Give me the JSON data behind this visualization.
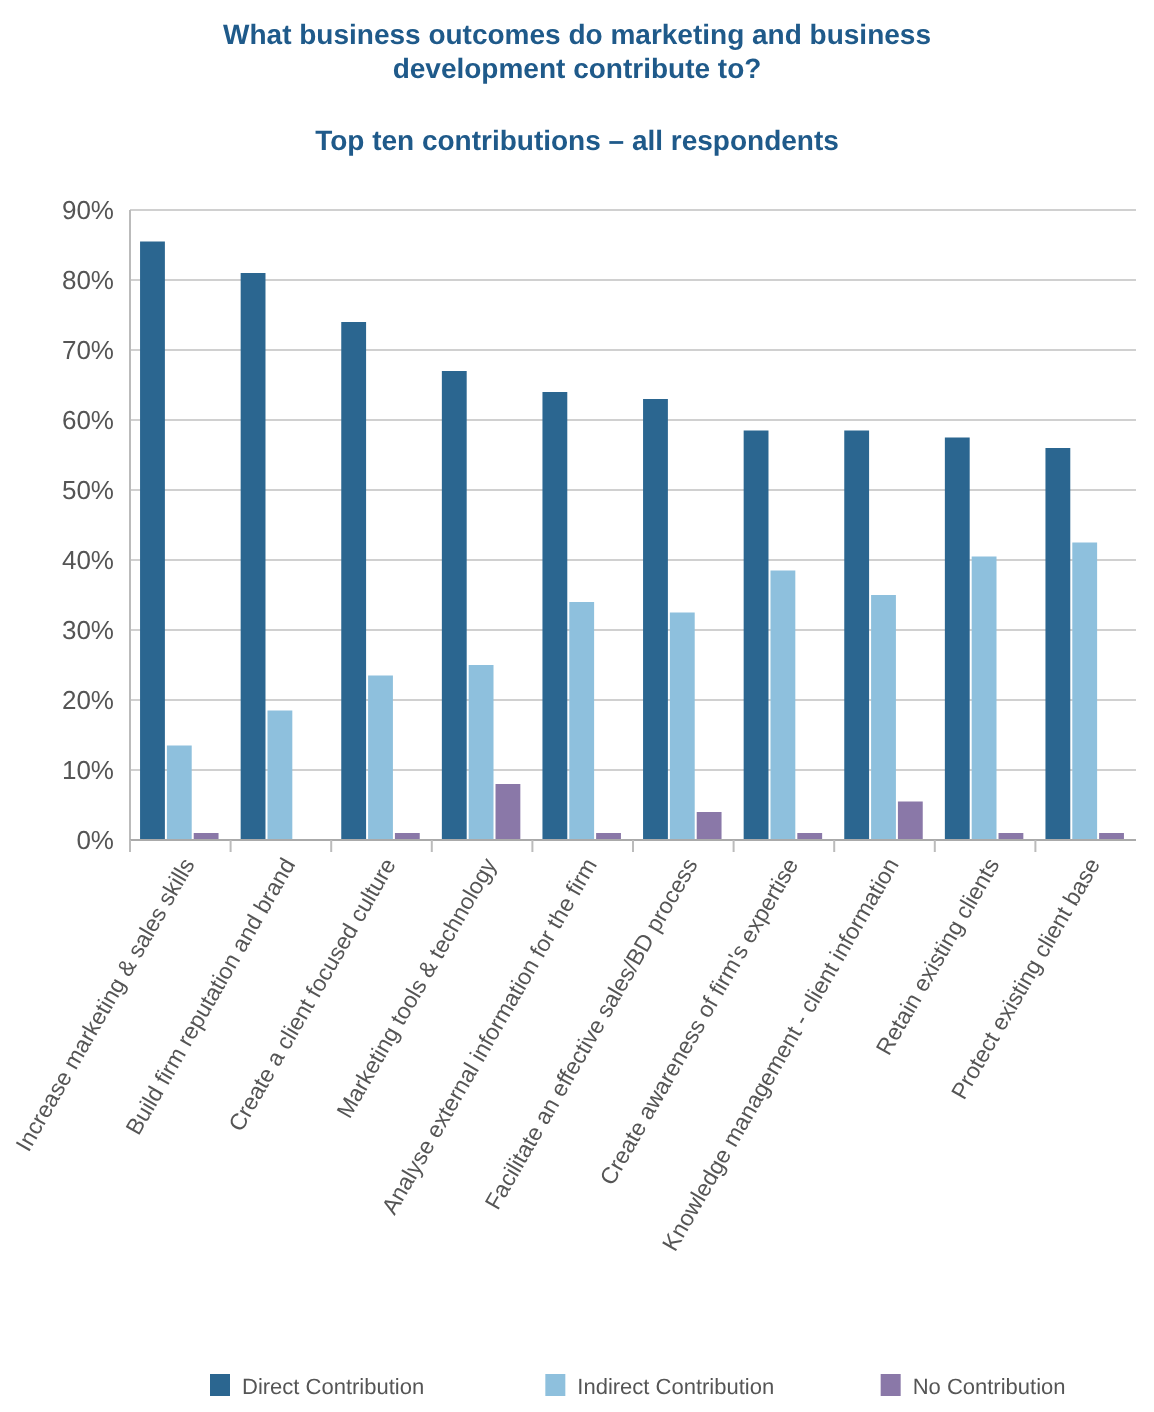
{
  "chart_data": {
    "type": "bar",
    "title": "What business outcomes do marketing and business development contribute to?",
    "subtitle": "Top ten contributions – all respondents",
    "categories": [
      "Increase marketing & sales skills",
      "Build firm reputation and brand",
      "Create a client focused culture",
      "Marketing tools & technology",
      "Analyse external information for the firm",
      "Facilitate an effective sales/BD process",
      "Create awareness of firm's expertise",
      "Knowledge management - client information",
      "Retain existing clients",
      "Protect existing client base"
    ],
    "series": [
      {
        "name": "Direct Contribution",
        "color": "#2b6690",
        "values": [
          85.5,
          81,
          74,
          67,
          64,
          63,
          58.5,
          58.5,
          57.5,
          56
        ]
      },
      {
        "name": "Indirect Contribution",
        "color": "#8ec0dd",
        "values": [
          13.5,
          18.5,
          23.5,
          25,
          34,
          32.5,
          38.5,
          35,
          40.5,
          42.5
        ]
      },
      {
        "name": "No Contribution",
        "color": "#8a78a8",
        "values": [
          1,
          0,
          1,
          8,
          1,
          4,
          1,
          5.5,
          1,
          1
        ]
      }
    ],
    "ylim": [
      0,
      90
    ],
    "yticks": [
      {
        "value": 0,
        "label": "0%"
      },
      {
        "value": 10,
        "label": "10%"
      },
      {
        "value": 20,
        "label": "20%"
      },
      {
        "value": 30,
        "label": "30%"
      },
      {
        "value": 40,
        "label": "40%"
      },
      {
        "value": 50,
        "label": "50%"
      },
      {
        "value": 60,
        "label": "60%"
      },
      {
        "value": 70,
        "label": "70%"
      },
      {
        "value": 80,
        "label": "80%"
      },
      {
        "value": 90,
        "label": "90%"
      }
    ],
    "grid": "y",
    "legend": "bottom"
  }
}
